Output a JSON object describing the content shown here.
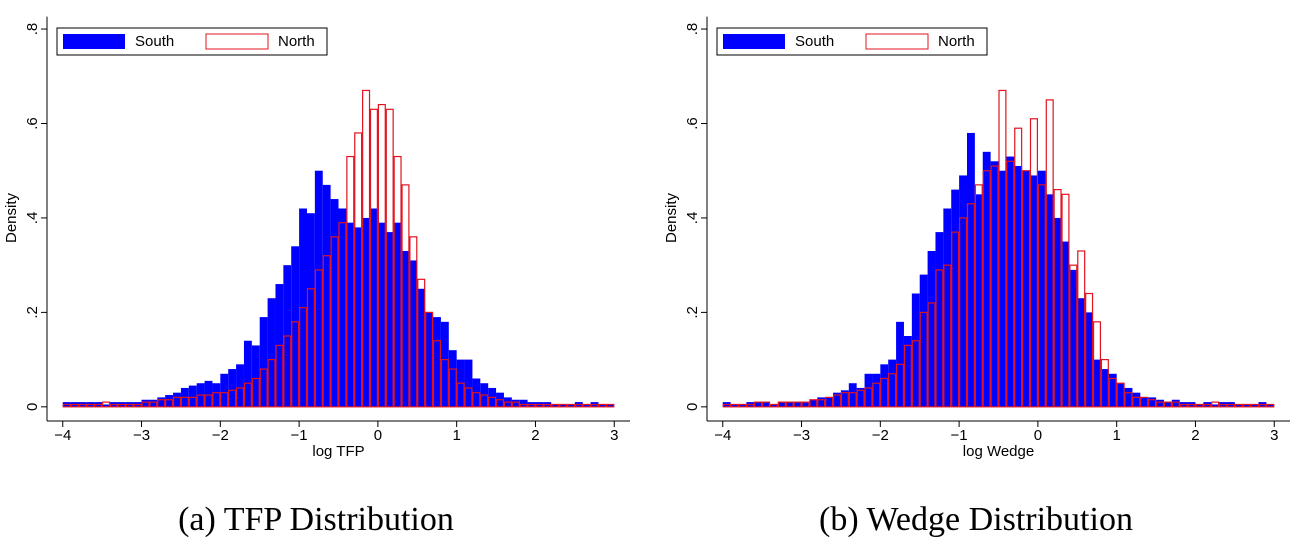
{
  "chart_data": [
    {
      "type": "histogram",
      "xlabel": "log TFP",
      "ylabel": "Density",
      "caption": "(a) TFP Distribution",
      "legend": "top-left",
      "bins": [
        -4,
        -3.9,
        -3.8,
        -3.7,
        -3.6,
        -3.5,
        -3.4,
        -3.3,
        -3.2,
        -3.1,
        -3,
        -2.9,
        -2.8,
        -2.7,
        -2.6,
        -2.5,
        -2.4,
        -2.3,
        -2.2,
        -2.1,
        -2,
        -1.9,
        -1.8,
        -1.7,
        -1.6,
        -1.5,
        -1.4,
        -1.3,
        -1.2,
        -1.1,
        -1,
        -0.9,
        -0.8,
        -0.7,
        -0.6,
        -0.5,
        -0.4,
        -0.3,
        -0.2,
        -0.1,
        0,
        0.1,
        0.2,
        0.3,
        0.4,
        0.5,
        0.6,
        0.7,
        0.8,
        0.9,
        1,
        1.1,
        1.2,
        1.3,
        1.4,
        1.5,
        1.6,
        1.7,
        1.8,
        1.9,
        2,
        2.1,
        2.2,
        2.3,
        2.4,
        2.5,
        2.6,
        2.7,
        2.8,
        2.9,
        3
      ],
      "series": [
        {
          "name": "South",
          "color": "#0000ff",
          "filled": true,
          "values": [
            0.01,
            0.01,
            0.01,
            0.01,
            0.01,
            0.005,
            0.01,
            0.01,
            0.01,
            0.01,
            0.015,
            0.015,
            0.02,
            0.025,
            0.03,
            0.04,
            0.045,
            0.05,
            0.055,
            0.05,
            0.07,
            0.08,
            0.09,
            0.14,
            0.13,
            0.19,
            0.23,
            0.26,
            0.3,
            0.34,
            0.42,
            0.41,
            0.5,
            0.47,
            0.44,
            0.42,
            0.39,
            0.38,
            0.4,
            0.42,
            0.39,
            0.37,
            0.39,
            0.33,
            0.31,
            0.25,
            0.2,
            0.19,
            0.18,
            0.12,
            0.1,
            0.1,
            0.06,
            0.05,
            0.04,
            0.03,
            0.02,
            0.015,
            0.015,
            0.01,
            0.01,
            0.01,
            0.005,
            0.005,
            0.005,
            0.01,
            0.005,
            0.01,
            0.005,
            0.005
          ]
        },
        {
          "name": "North",
          "color": "#e0141e",
          "filled": false,
          "values": [
            0.005,
            0.005,
            0.005,
            0.005,
            0.005,
            0.01,
            0.005,
            0.005,
            0.005,
            0.005,
            0.01,
            0.01,
            0.015,
            0.015,
            0.02,
            0.02,
            0.02,
            0.025,
            0.025,
            0.03,
            0.03,
            0.035,
            0.04,
            0.05,
            0.06,
            0.08,
            0.1,
            0.13,
            0.15,
            0.18,
            0.21,
            0.25,
            0.29,
            0.32,
            0.36,
            0.39,
            0.53,
            0.58,
            0.67,
            0.63,
            0.64,
            0.63,
            0.53,
            0.47,
            0.36,
            0.27,
            0.2,
            0.14,
            0.1,
            0.08,
            0.05,
            0.04,
            0.03,
            0.025,
            0.02,
            0.015,
            0.01,
            0.01,
            0.005,
            0.005,
            0.005,
            0.005,
            0.005,
            0.005,
            0.005,
            0.005,
            0.005,
            0.005,
            0.005,
            0.005
          ]
        }
      ],
      "xlim": [
        -4.2,
        3.2
      ],
      "ylim": [
        -0.03,
        0.82
      ],
      "xticks": [
        {
          "value": -4,
          "label": "−4"
        },
        {
          "value": -3,
          "label": "−3"
        },
        {
          "value": -2,
          "label": "−2"
        },
        {
          "value": -1,
          "label": "−1"
        },
        0,
        1,
        2,
        3
      ],
      "yticks": [
        0,
        {
          "value": 0.2,
          "label": ".2"
        },
        {
          "value": 0.4,
          "label": ".4"
        },
        {
          "value": 0.6,
          "label": ".6"
        },
        {
          "value": 0.8,
          "label": ".8"
        }
      ]
    },
    {
      "type": "histogram",
      "xlabel": "log Wedge",
      "ylabel": "Density",
      "caption": "(b) Wedge Distribution",
      "legend": "top-left",
      "bins": [
        -4,
        -3.9,
        -3.8,
        -3.7,
        -3.6,
        -3.5,
        -3.4,
        -3.3,
        -3.2,
        -3.1,
        -3,
        -2.9,
        -2.8,
        -2.7,
        -2.6,
        -2.5,
        -2.4,
        -2.3,
        -2.2,
        -2.1,
        -2,
        -1.9,
        -1.8,
        -1.7,
        -1.6,
        -1.5,
        -1.4,
        -1.3,
        -1.2,
        -1.1,
        -1,
        -0.9,
        -0.8,
        -0.7,
        -0.6,
        -0.5,
        -0.4,
        -0.3,
        -0.2,
        -0.1,
        0,
        0.1,
        0.2,
        0.3,
        0.4,
        0.5,
        0.6,
        0.7,
        0.8,
        0.9,
        1,
        1.1,
        1.2,
        1.3,
        1.4,
        1.5,
        1.6,
        1.7,
        1.8,
        1.9,
        2,
        2.1,
        2.2,
        2.3,
        2.4,
        2.5,
        2.6,
        2.7,
        2.8,
        2.9,
        3
      ],
      "series": [
        {
          "name": "South",
          "color": "#0000ff",
          "filled": true,
          "values": [
            0.01,
            0.005,
            0.005,
            0.01,
            0.01,
            0.01,
            0.005,
            0.01,
            0.01,
            0.01,
            0.01,
            0.015,
            0.02,
            0.02,
            0.03,
            0.035,
            0.05,
            0.04,
            0.07,
            0.07,
            0.09,
            0.1,
            0.18,
            0.15,
            0.24,
            0.28,
            0.33,
            0.37,
            0.42,
            0.46,
            0.49,
            0.58,
            0.45,
            0.54,
            0.52,
            0.5,
            0.53,
            0.51,
            0.5,
            0.49,
            0.5,
            0.45,
            0.4,
            0.35,
            0.29,
            0.23,
            0.2,
            0.1,
            0.08,
            0.07,
            0.05,
            0.04,
            0.03,
            0.02,
            0.02,
            0.015,
            0.01,
            0.015,
            0.01,
            0.01,
            0.005,
            0.01,
            0.005,
            0.01,
            0.01,
            0.005,
            0.005,
            0.005,
            0.01,
            0.005
          ]
        },
        {
          "name": "North",
          "color": "#e0141e",
          "filled": false,
          "values": [
            0.005,
            0.005,
            0.005,
            0.005,
            0.01,
            0.01,
            0.005,
            0.01,
            0.01,
            0.01,
            0.01,
            0.015,
            0.015,
            0.02,
            0.025,
            0.03,
            0.03,
            0.035,
            0.04,
            0.05,
            0.06,
            0.07,
            0.09,
            0.13,
            0.14,
            0.2,
            0.22,
            0.29,
            0.3,
            0.37,
            0.4,
            0.43,
            0.47,
            0.5,
            0.51,
            0.67,
            0.52,
            0.59,
            0.5,
            0.61,
            0.47,
            0.65,
            0.46,
            0.45,
            0.3,
            0.33,
            0.24,
            0.18,
            0.1,
            0.06,
            0.05,
            0.03,
            0.02,
            0.02,
            0.015,
            0.01,
            0.01,
            0.01,
            0.005,
            0.005,
            0.005,
            0.005,
            0.01,
            0.005,
            0.005,
            0.005,
            0.005,
            0.005,
            0.005,
            0.005
          ]
        }
      ],
      "xlim": [
        -4.2,
        3.2
      ],
      "ylim": [
        -0.03,
        0.82
      ],
      "xticks": [
        {
          "value": -4,
          "label": "−4"
        },
        {
          "value": -3,
          "label": "−3"
        },
        {
          "value": -2,
          "label": "−2"
        },
        {
          "value": -1,
          "label": "−1"
        },
        0,
        1,
        2,
        3
      ],
      "yticks": [
        0,
        {
          "value": 0.2,
          "label": ".2"
        },
        {
          "value": 0.4,
          "label": ".4"
        },
        {
          "value": 0.6,
          "label": ".6"
        },
        {
          "value": 0.8,
          "label": ".8"
        }
      ]
    }
  ]
}
